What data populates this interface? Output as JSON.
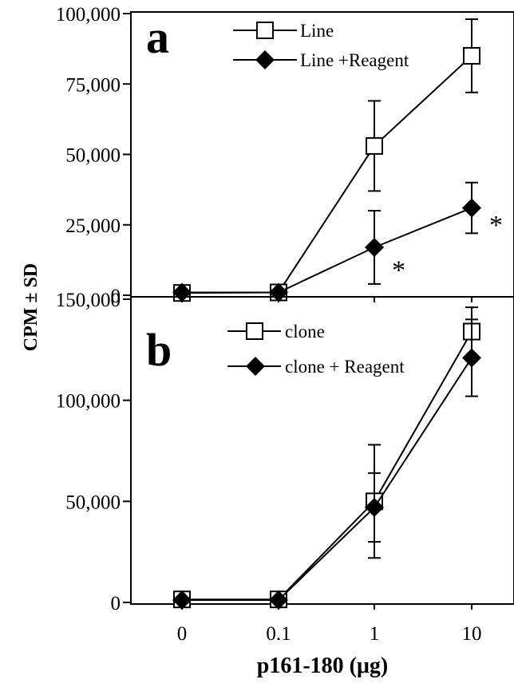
{
  "chart_data": {
    "type": "line",
    "ylabel": "CPM ± SD",
    "xlabel": "p161-180 (μg)",
    "categories": [
      "0",
      "0.1",
      "1",
      "10"
    ],
    "panels": [
      {
        "letter": "a",
        "ylim": [
          0,
          100000
        ],
        "yticks": [
          0,
          25000,
          50000,
          75000,
          100000
        ],
        "ytick_labels": [
          "0",
          "25,000",
          "50,000",
          "75,000",
          "100,000"
        ],
        "legend_placement": "top-center",
        "series": [
          {
            "name": "Line",
            "marker": "open-square",
            "values": [
              800,
              1000,
              53000,
              85000
            ],
            "errors": [
              2200,
              0,
              16000,
              13000
            ]
          },
          {
            "name": "Line +Reagent",
            "marker": "filled-diamond",
            "values": [
              1000,
              1000,
              17000,
              31000
            ],
            "errors": [
              0,
              0,
              13000,
              9000
            ]
          }
        ],
        "annotations": [
          {
            "text": "*",
            "x_index": 2,
            "y": 12000
          },
          {
            "text": "*",
            "x_index": 3,
            "y": 28000
          }
        ]
      },
      {
        "letter": "b",
        "ylim": [
          0,
          150000
        ],
        "yticks": [
          0,
          50000,
          100000,
          150000
        ],
        "ytick_labels": [
          "0",
          "50,000",
          "100,000",
          "150,000"
        ],
        "legend_placement": "top-center",
        "series": [
          {
            "name": "clone",
            "marker": "open-square",
            "values": [
              1500,
              1500,
              50000,
              134000
            ],
            "errors": [
              0,
              0,
              28000,
              12000
            ]
          },
          {
            "name": "clone + Reagent",
            "marker": "filled-diamond",
            "values": [
              1200,
              1200,
              47000,
              121000
            ],
            "errors": [
              0,
              0,
              17000,
              19000
            ]
          }
        ],
        "annotations": []
      }
    ]
  }
}
